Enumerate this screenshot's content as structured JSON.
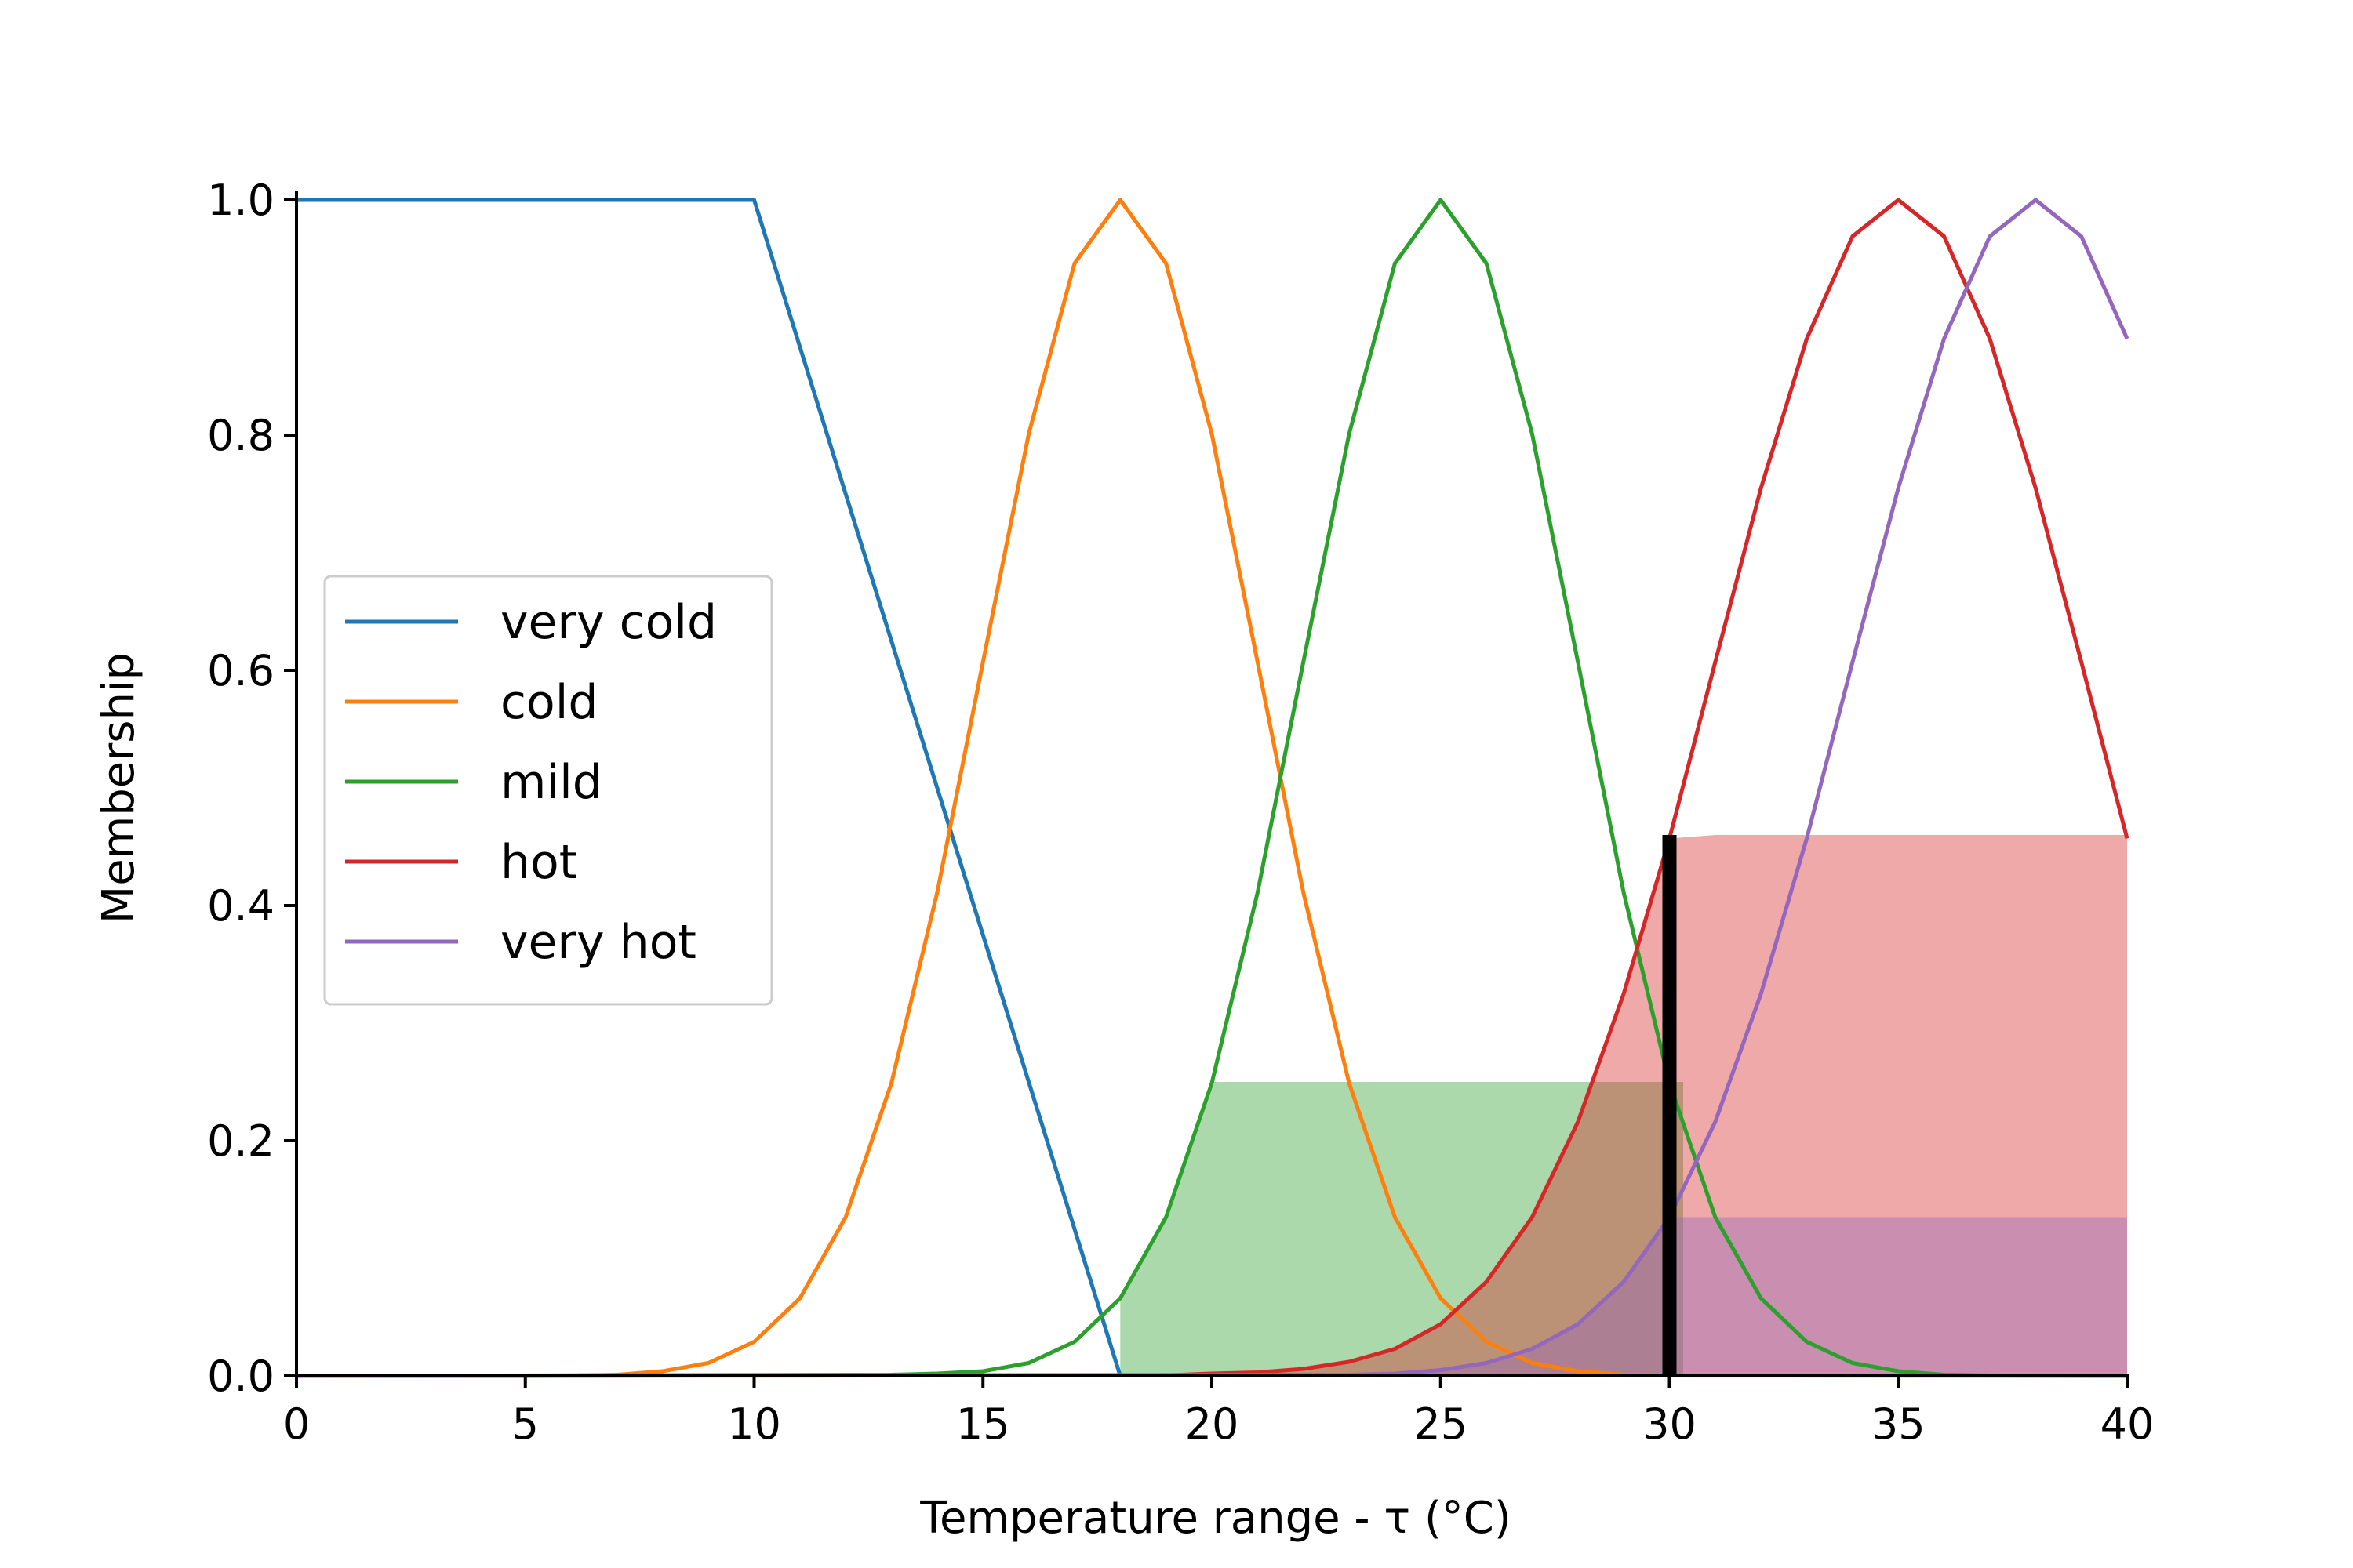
{
  "chart_data": {
    "type": "line",
    "title": "",
    "xlabel": "Temperature range - τ (°C)",
    "ylabel": "Membership",
    "xlim": [
      0,
      40
    ],
    "ylim": [
      0,
      1.0
    ],
    "xticks": [
      0,
      5,
      10,
      15,
      20,
      25,
      30,
      35,
      40
    ],
    "xtick_labels": [
      "0",
      "5",
      "10",
      "15",
      "20",
      "25",
      "30",
      "35",
      "40"
    ],
    "yticks": [
      0,
      0.2,
      0.4,
      0.6,
      0.8,
      1.0
    ],
    "ytick_labels": [
      "0.0",
      "0.2",
      "0.4",
      "0.6",
      "0.8",
      "1.0"
    ],
    "grid": false,
    "legend_position": "center-left",
    "series": [
      {
        "name": "very cold",
        "color": "#1f77b4",
        "x": [
          0,
          10,
          18
        ],
        "y": [
          1.0,
          1.0,
          0.0
        ]
      },
      {
        "name": "cold",
        "color": "#ff7f0e",
        "x": [
          0,
          5,
          6,
          7,
          8,
          9,
          10,
          11,
          12,
          13,
          14,
          15,
          16,
          17,
          18,
          19,
          20,
          21,
          22,
          23,
          24,
          25,
          26,
          27,
          28,
          29,
          30,
          40
        ],
        "y": [
          0,
          0,
          0.0003,
          0.001,
          0.004,
          0.011,
          0.029,
          0.066,
          0.135,
          0.249,
          0.411,
          0.607,
          0.801,
          0.946,
          1.0,
          0.946,
          0.801,
          0.607,
          0.411,
          0.249,
          0.135,
          0.066,
          0.029,
          0.011,
          0.004,
          0.001,
          0.0003,
          0
        ]
      },
      {
        "name": "mild",
        "color": "#2ca02c",
        "x": [
          0,
          13,
          14,
          15,
          16,
          17,
          18,
          19,
          20,
          21,
          22,
          23,
          24,
          25,
          26,
          27,
          28,
          29,
          30,
          31,
          32,
          33,
          34,
          35,
          36,
          37,
          40
        ],
        "y": [
          0,
          0.001,
          0.002,
          0.004,
          0.011,
          0.029,
          0.066,
          0.135,
          0.249,
          0.411,
          0.607,
          0.801,
          0.946,
          1.0,
          0.946,
          0.801,
          0.607,
          0.411,
          0.249,
          0.135,
          0.066,
          0.029,
          0.011,
          0.004,
          0.001,
          0.0003,
          0
        ]
      },
      {
        "name": "hot",
        "color": "#d62728",
        "x": [
          0,
          19,
          20,
          21,
          22,
          23,
          24,
          25,
          26,
          27,
          28,
          29,
          30,
          31,
          32,
          33,
          34,
          35,
          36,
          37,
          38,
          39,
          40
        ],
        "y": [
          0,
          0.0005,
          0.002,
          0.003,
          0.006,
          0.012,
          0.023,
          0.044,
          0.08,
          0.135,
          0.216,
          0.325,
          0.457,
          0.607,
          0.755,
          0.882,
          0.969,
          1.0,
          0.969,
          0.882,
          0.755,
          0.607,
          0.457
        ]
      },
      {
        "name": "very hot",
        "color": "#9467bd",
        "x": [
          0,
          23,
          24,
          25,
          26,
          27,
          28,
          29,
          30,
          31,
          32,
          33,
          34,
          35,
          36,
          37,
          38,
          39,
          40
        ],
        "y": [
          0,
          0.001,
          0.002,
          0.005,
          0.011,
          0.023,
          0.044,
          0.08,
          0.135,
          0.216,
          0.325,
          0.457,
          0.607,
          0.755,
          0.882,
          0.969,
          1.0,
          0.969,
          0.882
        ]
      }
    ],
    "filled_regions": [
      {
        "series": "mild",
        "color": "#2ca02c",
        "opacity": 0.4,
        "level": 0.25,
        "x": [
          18,
          19,
          20,
          21,
          22,
          23,
          24,
          25,
          26,
          27,
          28,
          29,
          30,
          30.3
        ],
        "y": [
          0.066,
          0.135,
          0.25,
          0.25,
          0.25,
          0.25,
          0.25,
          0.25,
          0.25,
          0.25,
          0.25,
          0.25,
          0.25,
          0.25
        ]
      },
      {
        "series": "hot",
        "color": "#d62728",
        "opacity": 0.4,
        "level": 0.46,
        "x": [
          20,
          21,
          22,
          23,
          24,
          25,
          26,
          27,
          28,
          29,
          30,
          31,
          40
        ],
        "y": [
          0.002,
          0.003,
          0.006,
          0.012,
          0.023,
          0.044,
          0.08,
          0.135,
          0.216,
          0.325,
          0.457,
          0.46,
          0.46
        ]
      },
      {
        "series": "very hot",
        "color": "#9467bd",
        "opacity": 0.4,
        "level": 0.135,
        "x": [
          22,
          23,
          24,
          25,
          26,
          27,
          28,
          29,
          30,
          40
        ],
        "y": [
          0.0005,
          0.001,
          0.002,
          0.005,
          0.011,
          0.023,
          0.044,
          0.08,
          0.135,
          0.135
        ]
      }
    ],
    "vertical_line": {
      "x": 30,
      "y_top": 0.46,
      "color": "#000000"
    }
  }
}
